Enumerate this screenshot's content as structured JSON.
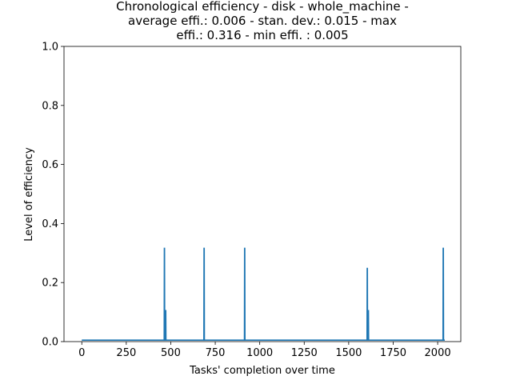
{
  "chart_data": {
    "type": "line",
    "title_lines": [
      "Chronological efficiency - disk - whole_machine -",
      "average effi.: 0.006 - stan. dev.: 0.015 - max",
      "effi.: 0.316 - min effi. : 0.005"
    ],
    "xlabel": "Tasks' completion over time",
    "ylabel": "Level of efficiency",
    "xlim": [
      -100,
      2130
    ],
    "ylim": [
      0,
      1.0
    ],
    "xticks": [
      "0",
      "250",
      "500",
      "750",
      "1000",
      "1250",
      "1500",
      "1750",
      "2000"
    ],
    "yticks": [
      "0.0",
      "0.2",
      "0.4",
      "0.6",
      "0.8",
      "1.0"
    ],
    "grid": false,
    "series": [
      {
        "color": "#1f77b4",
        "x": [
          0,
          463,
          464,
          465,
          466,
          470,
          471,
          472,
          473,
          686,
          687,
          688,
          689,
          914,
          915,
          916,
          917,
          1603,
          1604,
          1605,
          1606,
          1609,
          1610,
          1611,
          1612,
          2030,
          2031,
          2032,
          2033,
          2040
        ],
        "y": [
          0.005,
          0.005,
          0.316,
          0.316,
          0.005,
          0.005,
          0.105,
          0.105,
          0.005,
          0.005,
          0.316,
          0.316,
          0.005,
          0.005,
          0.316,
          0.316,
          0.005,
          0.005,
          0.248,
          0.248,
          0.005,
          0.005,
          0.105,
          0.105,
          0.005,
          0.005,
          0.316,
          0.316,
          0.005,
          0.005
        ]
      }
    ]
  }
}
